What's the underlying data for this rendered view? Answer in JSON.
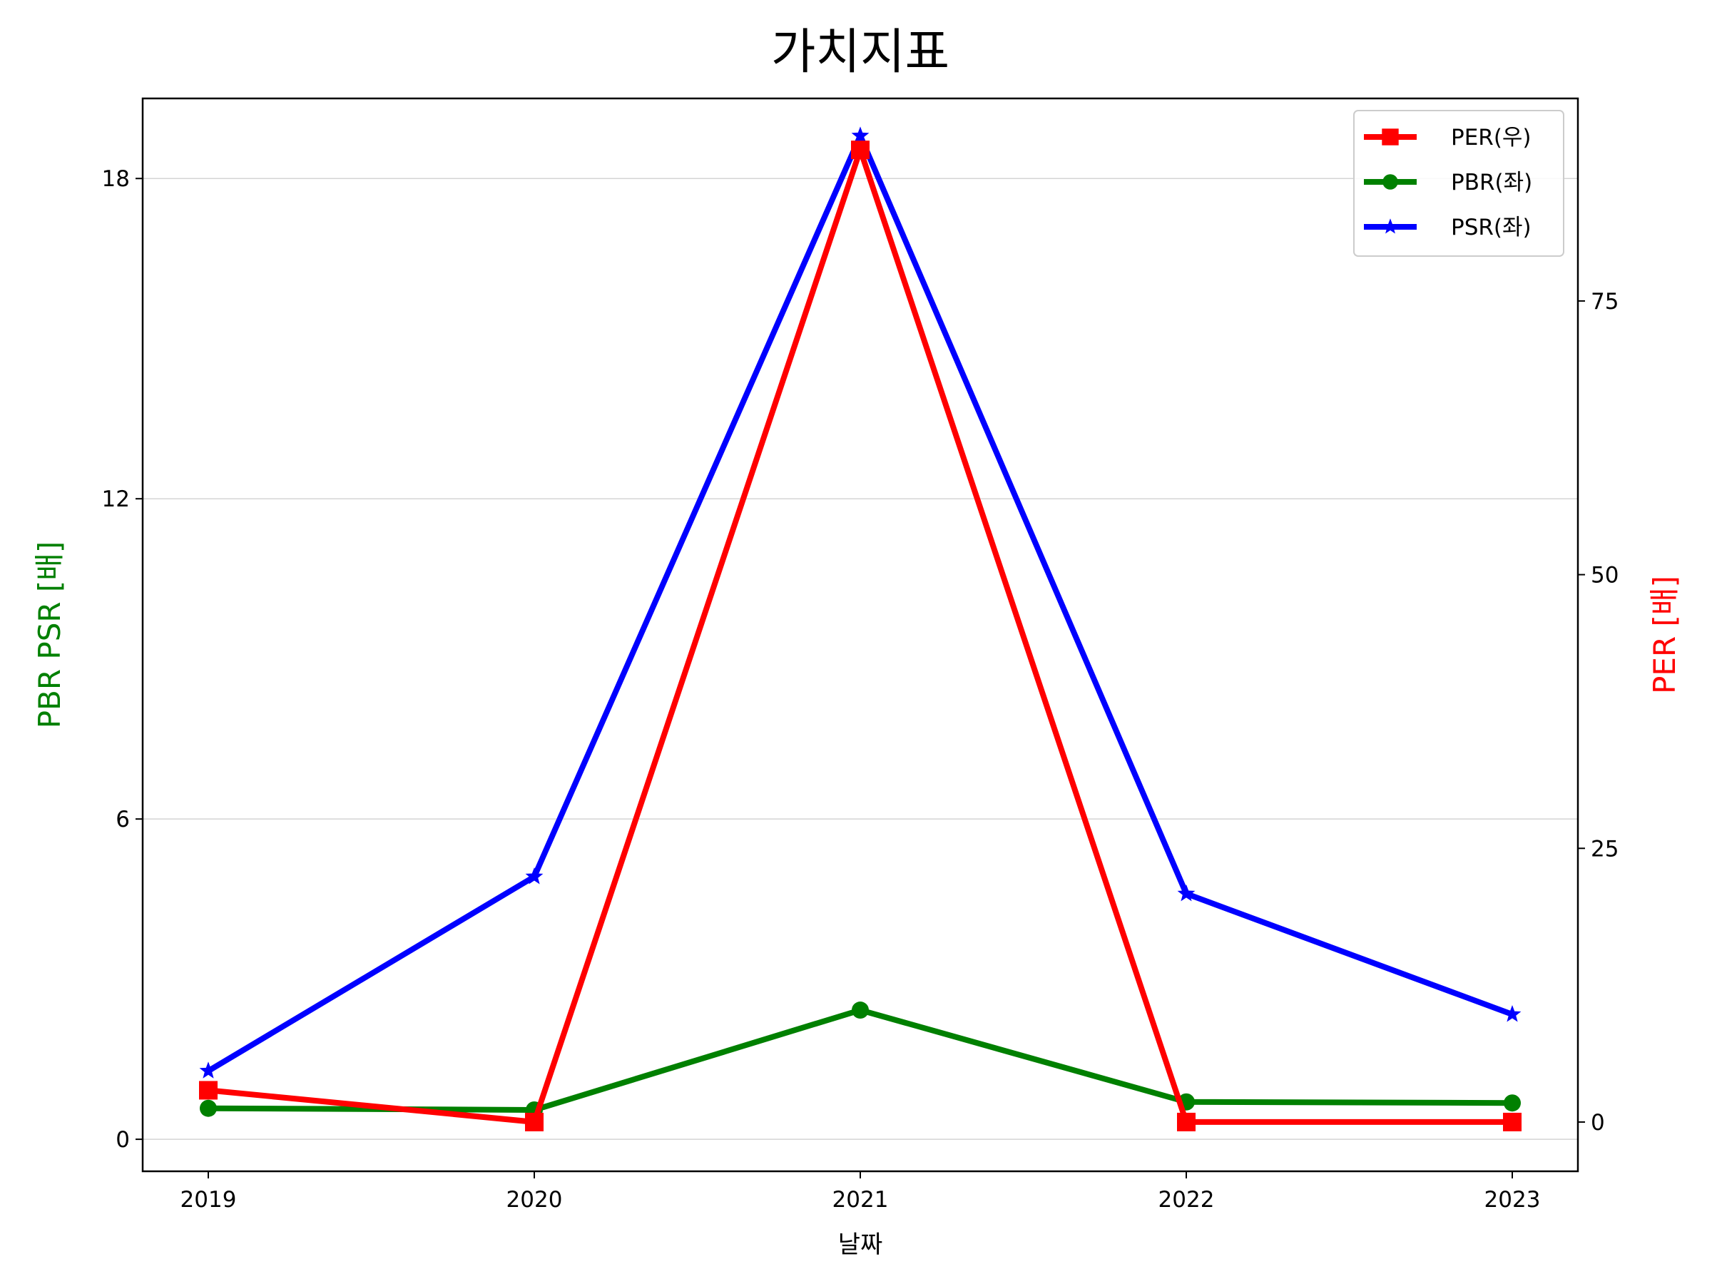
{
  "chart_data": {
    "type": "line",
    "title": "가치지표",
    "xlabel": "날짜",
    "ylabel_left": "PBR PSR [배]",
    "ylabel_right": "PER [배]",
    "categories": [
      "2019",
      "2020",
      "2021",
      "2022",
      "2023"
    ],
    "y_left": {
      "lim": [
        -0.6,
        19.5
      ],
      "ticks": [
        0,
        6,
        12,
        18
      ],
      "tick_labels": [
        "0",
        "6",
        "12",
        "18"
      ],
      "grid": true
    },
    "y_right": {
      "lim": [
        -4.5,
        93.5
      ],
      "ticks": [
        0,
        25,
        50,
        75
      ],
      "tick_labels": [
        "0",
        "25",
        "50",
        "75"
      ]
    },
    "legend": {
      "position": "upper right"
    },
    "series": [
      {
        "name": "PER(우)",
        "axis": "right",
        "color": "#ff0000",
        "marker": "square",
        "values": [
          2.9,
          0.0,
          88.8,
          0.0,
          0.0
        ]
      },
      {
        "name": "PBR(좌)",
        "axis": "left",
        "color": "#008000",
        "marker": "circle",
        "values": [
          0.58,
          0.55,
          2.42,
          0.7,
          0.68
        ]
      },
      {
        "name": "PSR(좌)",
        "axis": "left",
        "color": "#0000ff",
        "marker": "star",
        "values": [
          1.28,
          4.92,
          18.8,
          4.6,
          2.34
        ]
      }
    ]
  }
}
